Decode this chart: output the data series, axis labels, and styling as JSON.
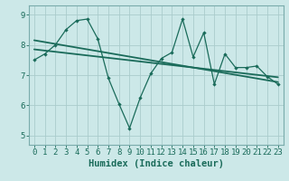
{
  "xlabel": "Humidex (Indice chaleur)",
  "background_color": "#cce8e8",
  "grid_color": "#aacccc",
  "line_color": "#1a6b5a",
  "spine_color": "#7aacac",
  "x_data": [
    0,
    1,
    2,
    3,
    4,
    5,
    6,
    7,
    8,
    9,
    10,
    11,
    12,
    13,
    14,
    15,
    16,
    17,
    18,
    19,
    20,
    21,
    22,
    23
  ],
  "y_main": [
    7.5,
    7.7,
    8.0,
    8.5,
    8.8,
    8.85,
    8.2,
    6.9,
    6.05,
    5.25,
    6.25,
    7.05,
    7.55,
    7.75,
    8.85,
    7.6,
    8.4,
    6.7,
    7.7,
    7.25,
    7.25,
    7.3,
    6.95,
    6.7
  ],
  "y_trend1": [
    8.15,
    8.09,
    8.03,
    7.97,
    7.91,
    7.85,
    7.79,
    7.73,
    7.67,
    7.61,
    7.55,
    7.49,
    7.43,
    7.37,
    7.31,
    7.25,
    7.19,
    7.13,
    7.07,
    7.01,
    6.95,
    6.89,
    6.83,
    6.77
  ],
  "y_trend2": [
    7.85,
    7.81,
    7.77,
    7.73,
    7.69,
    7.65,
    7.61,
    7.57,
    7.53,
    7.49,
    7.45,
    7.41,
    7.37,
    7.33,
    7.29,
    7.25,
    7.21,
    7.17,
    7.13,
    7.09,
    7.05,
    7.01,
    6.97,
    6.93
  ],
  "ylim": [
    4.7,
    9.3
  ],
  "xlim": [
    -0.5,
    23.5
  ],
  "yticks": [
    5,
    6,
    7,
    8,
    9
  ],
  "xticks": [
    0,
    1,
    2,
    3,
    4,
    5,
    6,
    7,
    8,
    9,
    10,
    11,
    12,
    13,
    14,
    15,
    16,
    17,
    18,
    19,
    20,
    21,
    22,
    23
  ],
  "tick_fontsize": 6.5,
  "xlabel_fontsize": 7.5
}
